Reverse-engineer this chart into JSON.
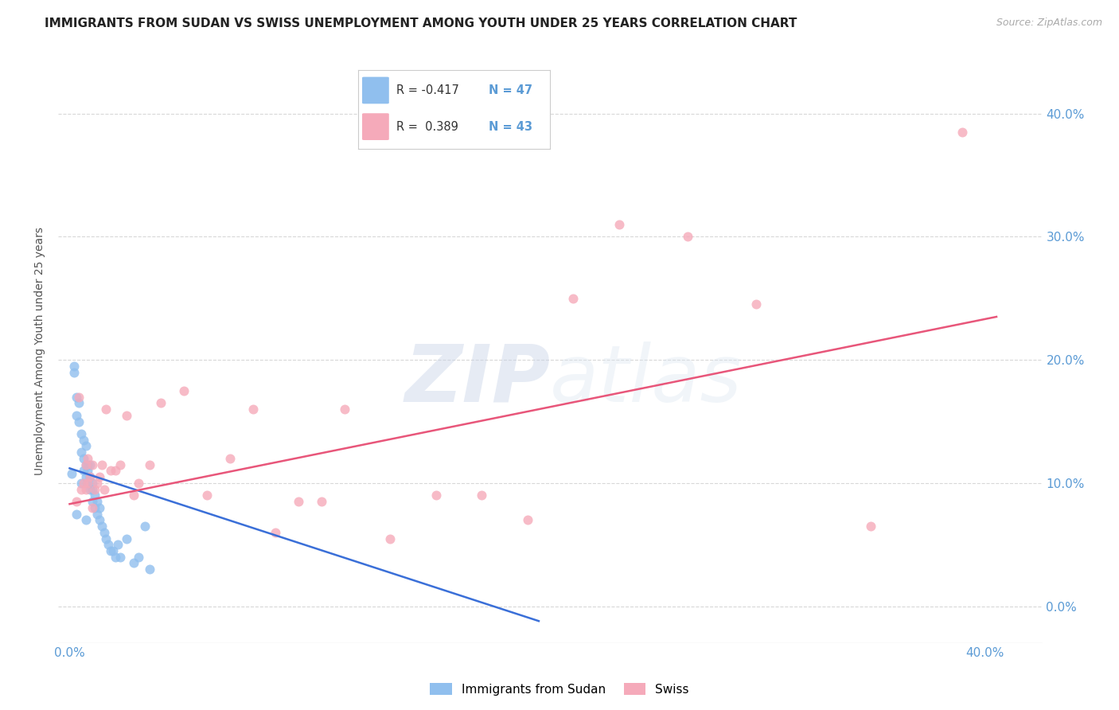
{
  "title": "IMMIGRANTS FROM SUDAN VS SWISS UNEMPLOYMENT AMONG YOUTH UNDER 25 YEARS CORRELATION CHART",
  "source": "Source: ZipAtlas.com",
  "ylabel": "Unemployment Among Youth under 25 years",
  "xlim": [
    -0.005,
    0.425
  ],
  "ylim": [
    -0.03,
    0.445
  ],
  "xtick_positions": [
    0.0,
    0.4
  ],
  "xtick_labels": [
    "0.0%",
    "40.0%"
  ],
  "ytick_positions": [
    0.0,
    0.1,
    0.2,
    0.3,
    0.4
  ],
  "ytick_labels": [
    "0.0%",
    "10.0%",
    "20.0%",
    "30.0%",
    "40.0%"
  ],
  "blue_scatter_x": [
    0.001,
    0.002,
    0.002,
    0.003,
    0.003,
    0.004,
    0.004,
    0.005,
    0.005,
    0.005,
    0.006,
    0.006,
    0.006,
    0.007,
    0.007,
    0.007,
    0.008,
    0.008,
    0.008,
    0.009,
    0.009,
    0.009,
    0.01,
    0.01,
    0.01,
    0.011,
    0.011,
    0.012,
    0.012,
    0.013,
    0.013,
    0.014,
    0.015,
    0.016,
    0.017,
    0.018,
    0.019,
    0.02,
    0.021,
    0.022,
    0.025,
    0.028,
    0.03,
    0.033,
    0.035,
    0.003,
    0.007
  ],
  "blue_scatter_y": [
    0.108,
    0.19,
    0.195,
    0.155,
    0.17,
    0.15,
    0.165,
    0.125,
    0.14,
    0.1,
    0.11,
    0.12,
    0.135,
    0.105,
    0.115,
    0.13,
    0.1,
    0.11,
    0.115,
    0.095,
    0.105,
    0.115,
    0.085,
    0.095,
    0.1,
    0.08,
    0.09,
    0.075,
    0.085,
    0.07,
    0.08,
    0.065,
    0.06,
    0.055,
    0.05,
    0.045,
    0.045,
    0.04,
    0.05,
    0.04,
    0.055,
    0.035,
    0.04,
    0.065,
    0.03,
    0.075,
    0.07
  ],
  "pink_scatter_x": [
    0.003,
    0.004,
    0.005,
    0.006,
    0.007,
    0.007,
    0.008,
    0.008,
    0.009,
    0.01,
    0.01,
    0.011,
    0.012,
    0.013,
    0.014,
    0.015,
    0.016,
    0.018,
    0.02,
    0.022,
    0.025,
    0.028,
    0.03,
    0.035,
    0.04,
    0.05,
    0.06,
    0.07,
    0.08,
    0.09,
    0.1,
    0.11,
    0.12,
    0.14,
    0.16,
    0.18,
    0.2,
    0.22,
    0.24,
    0.27,
    0.3,
    0.35,
    0.39
  ],
  "pink_scatter_y": [
    0.085,
    0.17,
    0.095,
    0.1,
    0.095,
    0.115,
    0.1,
    0.12,
    0.105,
    0.08,
    0.115,
    0.095,
    0.1,
    0.105,
    0.115,
    0.095,
    0.16,
    0.11,
    0.11,
    0.115,
    0.155,
    0.09,
    0.1,
    0.115,
    0.165,
    0.175,
    0.09,
    0.12,
    0.16,
    0.06,
    0.085,
    0.085,
    0.16,
    0.055,
    0.09,
    0.09,
    0.07,
    0.25,
    0.31,
    0.3,
    0.245,
    0.065,
    0.385
  ],
  "blue_line_x": [
    0.0,
    0.205
  ],
  "blue_line_y": [
    0.112,
    -0.012
  ],
  "pink_line_x": [
    0.0,
    0.405
  ],
  "pink_line_y": [
    0.083,
    0.235
  ],
  "blue_color": "#90bfee",
  "pink_color": "#f5aaba",
  "blue_line_color": "#3a6fd8",
  "pink_line_color": "#e8567a",
  "legend_blue_R": "-0.417",
  "legend_blue_N": "47",
  "legend_pink_R": "0.389",
  "legend_pink_N": "43",
  "watermark_zip": "ZIP",
  "watermark_atlas": "atlas",
  "background_color": "#ffffff",
  "grid_color": "#d8d8d8",
  "title_fontsize": 11,
  "tick_label_color": "#5b9bd5",
  "legend_R_color": "#333333",
  "legend_N_color": "#5b9bd5"
}
